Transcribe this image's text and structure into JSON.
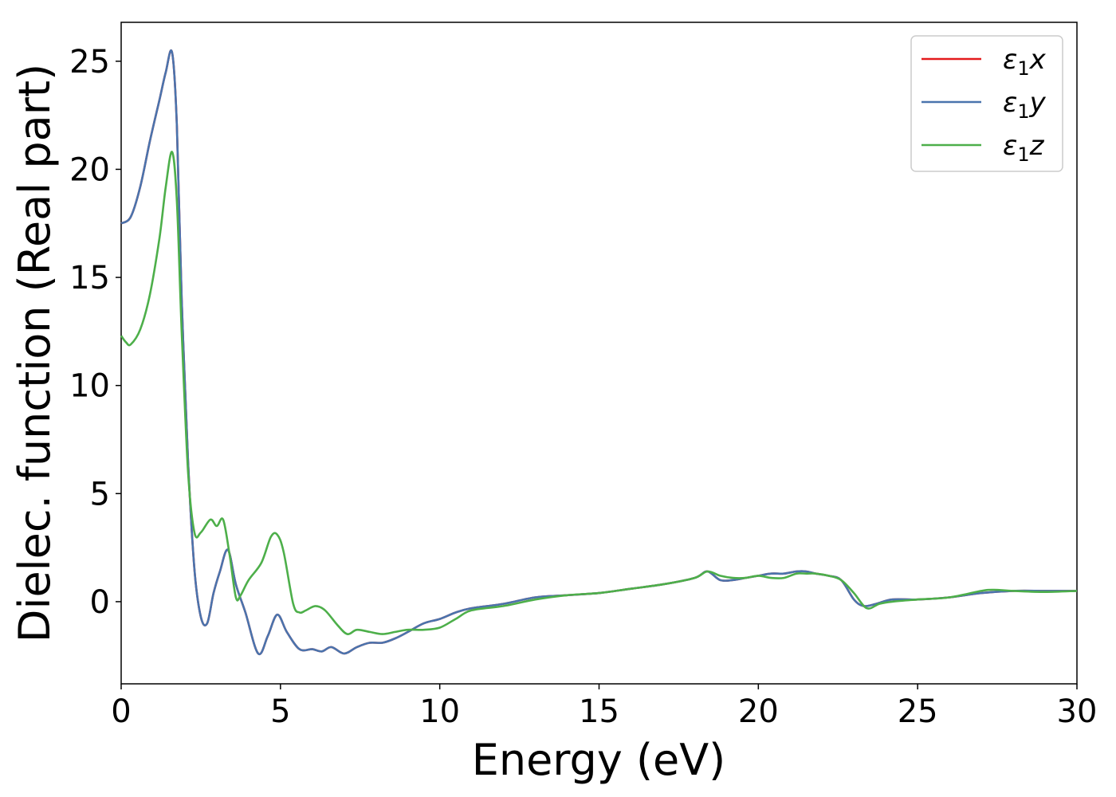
{
  "chart_data": {
    "type": "line",
    "xlabel": "Energy (eV)",
    "ylabel": "Dielec. function (Real part)",
    "xlim": [
      0,
      30
    ],
    "ylim": [
      -3.8,
      26.8
    ],
    "xticks": [
      0,
      5,
      10,
      15,
      20,
      25,
      30
    ],
    "yticks": [
      0,
      5,
      10,
      15,
      20,
      25
    ],
    "grid": false,
    "legend_position": "top-right",
    "series": [
      {
        "name": "ε₁x",
        "legend_main": "ε",
        "legend_sub": "1",
        "legend_var": "x",
        "color": "#e41a1c",
        "x": [
          0,
          0.3,
          0.6,
          0.9,
          1.2,
          1.4,
          1.6,
          1.75,
          1.9,
          2.1,
          2.3,
          2.5,
          2.7,
          2.9,
          3.1,
          3.35,
          3.6,
          3.9,
          4.3,
          4.6,
          4.9,
          5.2,
          5.6,
          6.0,
          6.3,
          6.6,
          7.0,
          7.4,
          7.8,
          8.2,
          8.6,
          9.0,
          9.5,
          10.0,
          10.5,
          11.0,
          12.0,
          13.0,
          14.0,
          15.0,
          16.0,
          17.0,
          18.0,
          18.4,
          18.8,
          19.2,
          19.6,
          20.0,
          20.4,
          20.8,
          21.2,
          21.5,
          21.8,
          22.2,
          22.6,
          23.0,
          23.3,
          23.7,
          24.2,
          25.0,
          26.0,
          27.0,
          28.0,
          29.0,
          30.0
        ],
        "values": [
          17.5,
          17.8,
          19.2,
          21.3,
          23.2,
          24.5,
          25.4,
          22.0,
          14.0,
          6.5,
          1.5,
          -0.7,
          -1.0,
          0.4,
          1.4,
          2.4,
          0.8,
          -0.5,
          -2.4,
          -1.6,
          -0.6,
          -1.4,
          -2.2,
          -2.2,
          -2.3,
          -2.1,
          -2.4,
          -2.1,
          -1.9,
          -1.9,
          -1.7,
          -1.4,
          -1.0,
          -0.8,
          -0.5,
          -0.3,
          -0.1,
          0.2,
          0.3,
          0.4,
          0.6,
          0.8,
          1.1,
          1.4,
          1.0,
          1.0,
          1.1,
          1.2,
          1.3,
          1.3,
          1.4,
          1.4,
          1.3,
          1.2,
          1.0,
          0.1,
          -0.2,
          -0.1,
          0.1,
          0.1,
          0.2,
          0.4,
          0.5,
          0.5,
          0.5
        ]
      },
      {
        "name": "ε₁y",
        "legend_main": "ε",
        "legend_sub": "1",
        "legend_var": "y",
        "color": "#4a74ad",
        "x": [
          0,
          0.3,
          0.6,
          0.9,
          1.2,
          1.4,
          1.6,
          1.75,
          1.9,
          2.1,
          2.3,
          2.5,
          2.7,
          2.9,
          3.1,
          3.35,
          3.6,
          3.9,
          4.3,
          4.6,
          4.9,
          5.2,
          5.6,
          6.0,
          6.3,
          6.6,
          7.0,
          7.4,
          7.8,
          8.2,
          8.6,
          9.0,
          9.5,
          10.0,
          10.5,
          11.0,
          12.0,
          13.0,
          14.0,
          15.0,
          16.0,
          17.0,
          18.0,
          18.4,
          18.8,
          19.2,
          19.6,
          20.0,
          20.4,
          20.8,
          21.2,
          21.5,
          21.8,
          22.2,
          22.6,
          23.0,
          23.3,
          23.7,
          24.2,
          25.0,
          26.0,
          27.0,
          28.0,
          29.0,
          30.0
        ],
        "values": [
          17.5,
          17.8,
          19.2,
          21.3,
          23.2,
          24.5,
          25.4,
          22.0,
          14.0,
          6.5,
          1.5,
          -0.7,
          -1.0,
          0.4,
          1.4,
          2.4,
          0.8,
          -0.5,
          -2.4,
          -1.6,
          -0.6,
          -1.4,
          -2.2,
          -2.2,
          -2.3,
          -2.1,
          -2.4,
          -2.1,
          -1.9,
          -1.9,
          -1.7,
          -1.4,
          -1.0,
          -0.8,
          -0.5,
          -0.3,
          -0.1,
          0.2,
          0.3,
          0.4,
          0.6,
          0.8,
          1.1,
          1.4,
          1.0,
          1.0,
          1.1,
          1.2,
          1.3,
          1.3,
          1.4,
          1.4,
          1.3,
          1.2,
          1.0,
          0.1,
          -0.2,
          -0.1,
          0.1,
          0.1,
          0.2,
          0.4,
          0.5,
          0.5,
          0.5
        ]
      },
      {
        "name": "ε₁z",
        "legend_main": "ε",
        "legend_sub": "1",
        "legend_var": "z",
        "color": "#4daf4a",
        "x": [
          0,
          0.15,
          0.3,
          0.6,
          0.9,
          1.2,
          1.4,
          1.6,
          1.75,
          1.9,
          2.1,
          2.3,
          2.5,
          2.8,
          3.0,
          3.2,
          3.4,
          3.6,
          3.75,
          4.0,
          4.4,
          4.7,
          4.9,
          5.1,
          5.4,
          5.6,
          5.8,
          6.1,
          6.4,
          6.8,
          7.1,
          7.4,
          7.8,
          8.2,
          8.6,
          9.0,
          9.5,
          10.0,
          10.5,
          11.0,
          12.0,
          13.0,
          14.0,
          15.0,
          16.0,
          17.0,
          18.0,
          18.4,
          18.8,
          19.2,
          19.6,
          20.0,
          20.4,
          20.8,
          21.2,
          21.5,
          21.8,
          22.2,
          22.6,
          23.0,
          23.4,
          23.8,
          24.2,
          25.0,
          26.0,
          27.0,
          27.4,
          28.0,
          29.0,
          30.0
        ],
        "values": [
          12.3,
          12.0,
          11.9,
          12.6,
          14.2,
          16.8,
          19.2,
          20.8,
          18.5,
          12.5,
          6.0,
          3.2,
          3.2,
          3.8,
          3.5,
          3.8,
          2.2,
          0.2,
          0.3,
          1.0,
          1.8,
          3.0,
          3.1,
          2.3,
          -0.1,
          -0.5,
          -0.4,
          -0.2,
          -0.4,
          -1.1,
          -1.5,
          -1.3,
          -1.4,
          -1.5,
          -1.4,
          -1.3,
          -1.3,
          -1.2,
          -0.8,
          -0.4,
          -0.2,
          0.1,
          0.3,
          0.4,
          0.6,
          0.8,
          1.1,
          1.4,
          1.2,
          1.1,
          1.1,
          1.2,
          1.1,
          1.1,
          1.3,
          1.3,
          1.3,
          1.2,
          1.0,
          0.4,
          -0.3,
          -0.1,
          0.0,
          0.1,
          0.2,
          0.5,
          0.55,
          0.5,
          0.45,
          0.5
        ]
      }
    ]
  }
}
